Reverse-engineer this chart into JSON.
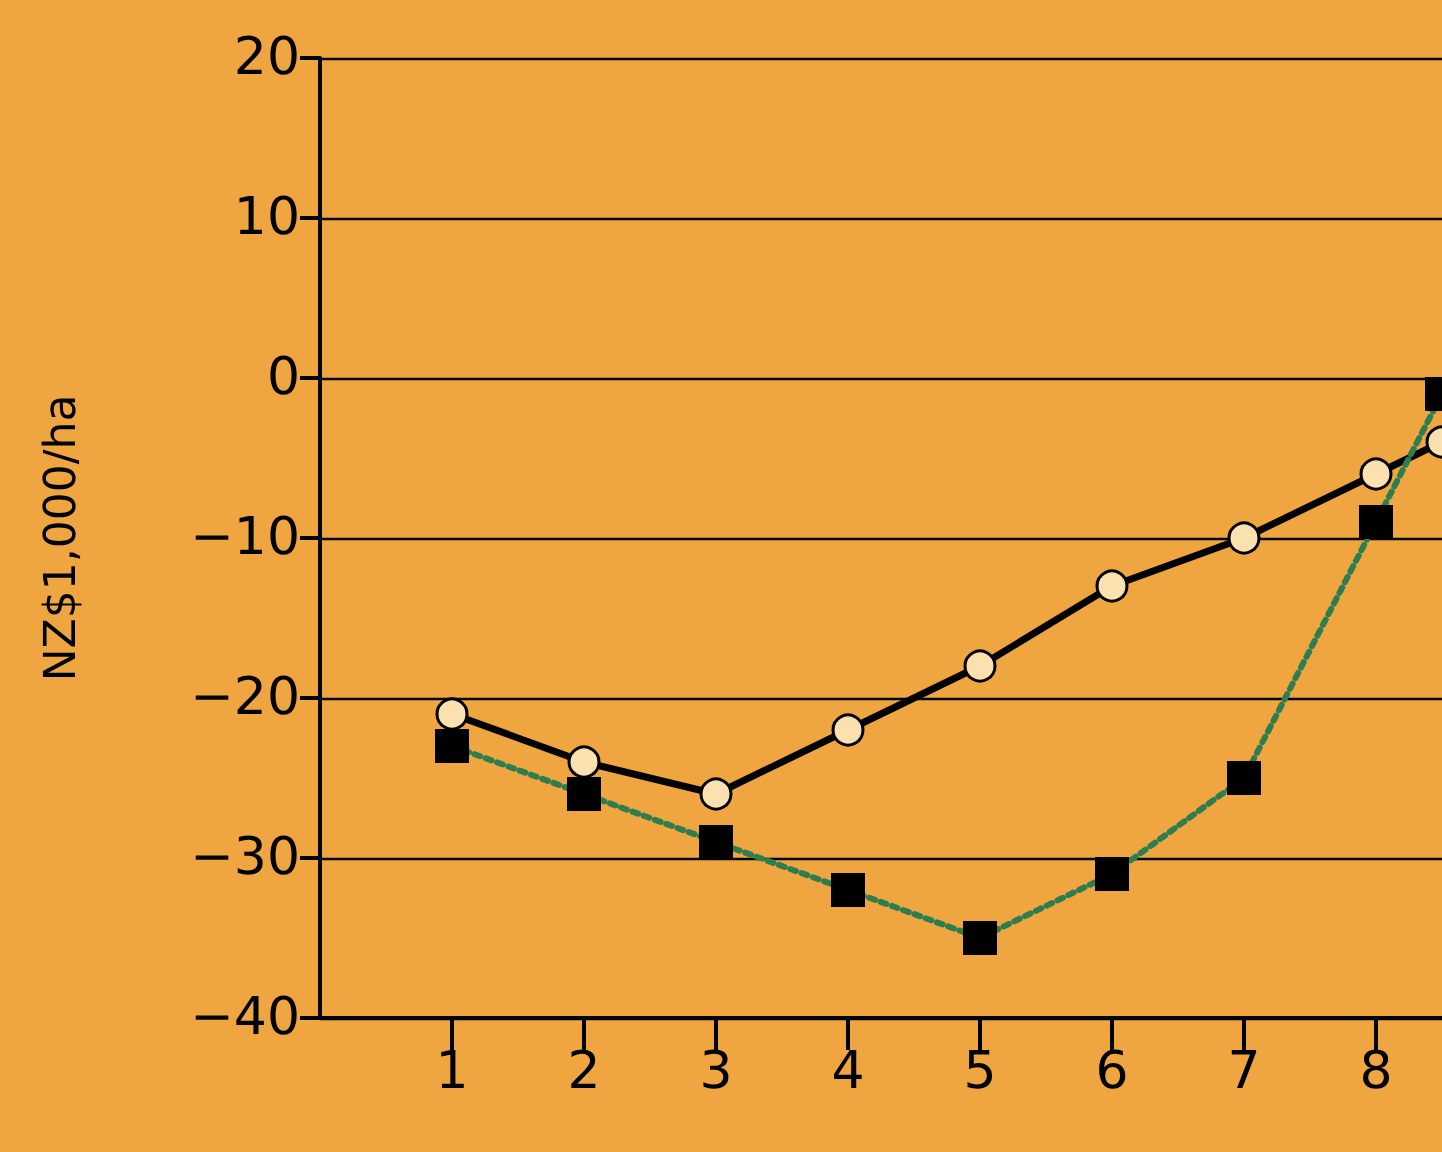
{
  "chart_data": {
    "type": "line",
    "ylabel": "NZ$1,000/ha",
    "xlim": [
      0,
      8.5
    ],
    "xticks": [
      1,
      2,
      3,
      4,
      5,
      6,
      7,
      8
    ],
    "ylim": [
      -40,
      20
    ],
    "yticks": [
      -40,
      -30,
      -20,
      -10,
      0,
      10,
      20
    ],
    "grid": "y",
    "series": [
      {
        "color": "#000000",
        "marker": "circle",
        "line_style": "solid",
        "x": [
          1,
          2,
          3,
          4,
          5,
          6,
          7,
          8,
          8.5
        ],
        "values": [
          -21,
          -24,
          -26,
          -22,
          -18,
          -13,
          -10,
          -6,
          -4
        ]
      },
      {
        "color": "#2e7d4f",
        "marker": "square",
        "line_style": "dotted",
        "x": [
          1,
          2,
          3,
          4,
          5,
          6,
          7,
          8,
          8.5
        ],
        "values": [
          -23,
          -26,
          -29,
          -32,
          -35,
          -31,
          -25,
          -9,
          -1
        ]
      }
    ]
  }
}
